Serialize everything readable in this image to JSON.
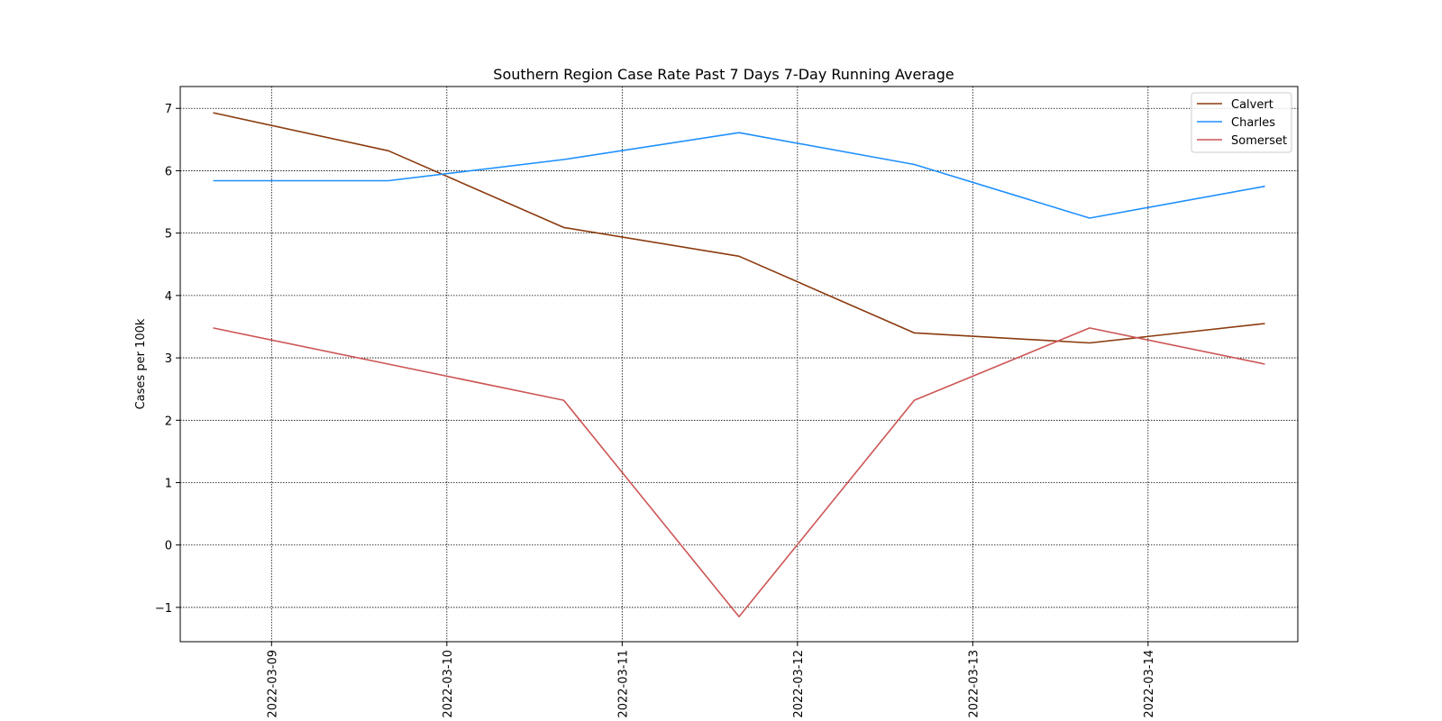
{
  "chart_data": {
    "type": "line",
    "title": "Southern Region Case Rate  Past 7 Days 7-Day Running Average",
    "xlabel": "",
    "ylabel": "Cases per 100k",
    "x_ticks": [
      "2022-03-09",
      "2022-03-10",
      "2022-03-11",
      "2022-03-12",
      "2022-03-13",
      "2022-03-14"
    ],
    "x": [
      "2022-03-08 16:00",
      "2022-03-09 16:00",
      "2022-03-10 16:00",
      "2022-03-11 16:00",
      "2022-03-12 16:00",
      "2022-03-13 16:00",
      "2022-03-14 16:00"
    ],
    "xlim": [
      "2022-03-08 11:30",
      "2022-03-14 20:30"
    ],
    "y_ticks": [
      -1,
      0,
      1,
      2,
      3,
      4,
      5,
      6,
      7
    ],
    "ylim": [
      -1.55,
      7.35
    ],
    "grid": true,
    "legend_position": "top-right",
    "series": [
      {
        "name": "Calvert",
        "color": "#8b3a0e",
        "values": [
          6.93,
          6.32,
          5.09,
          4.63,
          3.4,
          3.24,
          3.55
        ]
      },
      {
        "name": "Charles",
        "color": "#1e90ff",
        "values": [
          5.84,
          5.84,
          6.18,
          6.61,
          6.1,
          5.24,
          5.75
        ]
      },
      {
        "name": "Somerset",
        "color": "#cd5555",
        "values": [
          3.48,
          2.9,
          2.32,
          -1.15,
          2.32,
          3.48,
          2.9
        ]
      }
    ]
  }
}
